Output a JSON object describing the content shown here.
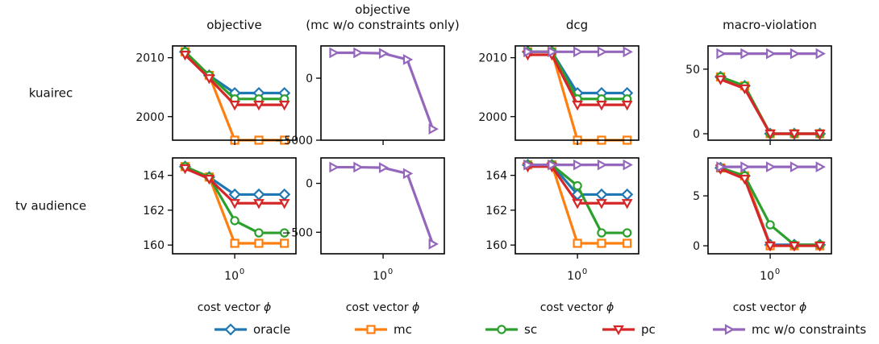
{
  "figure": {
    "row_labels": [
      "kuairec",
      "tv audience"
    ],
    "column_titles": [
      [
        "objective"
      ],
      [
        "objective",
        "(mc w/o constraints only)"
      ],
      [
        "dcg"
      ],
      [
        "macro-violation"
      ]
    ],
    "xlabel_text": "cost vector ",
    "xlabel_symbol": "ϕ",
    "x_tick_base": "10",
    "x_tick_exp": "0"
  },
  "chart_data": [
    {
      "type": "line",
      "row": "kuairec",
      "column": "objective",
      "ylim": [
        1996,
        2012
      ],
      "yticks": [
        {
          "v": 2000,
          "label": "2000"
        },
        {
          "v": 2010,
          "label": "2010"
        }
      ],
      "x": [
        0.5,
        0.7,
        1.0,
        1.4,
        2.0
      ],
      "series": [
        {
          "name": "oracle",
          "values": [
            2011,
            2007,
            2004,
            2004,
            2004
          ]
        },
        {
          "name": "mc",
          "values": [
            2011,
            2007,
            1996,
            1996,
            1996
          ]
        },
        {
          "name": "sc",
          "values": [
            2011,
            2007,
            2003,
            2003,
            2003
          ]
        },
        {
          "name": "pc",
          "values": [
            2010.5,
            2006.5,
            2002,
            2002,
            2002
          ]
        }
      ]
    },
    {
      "type": "line",
      "row": "kuairec",
      "column": "objective (mc w/o constraints only)",
      "ylim": [
        -5000,
        2600
      ],
      "yticks": [
        {
          "v": 0,
          "label": "0"
        },
        {
          "v": -5000,
          "label": "−5000"
        }
      ],
      "x": [
        0.5,
        0.7,
        1.0,
        1.4,
        2.0
      ],
      "series": [
        {
          "name": "mc w/o constraints",
          "values": [
            2050,
            2050,
            2000,
            1500,
            -4100
          ]
        }
      ]
    },
    {
      "type": "line",
      "row": "kuairec",
      "column": "dcg",
      "ylim": [
        1996,
        2012
      ],
      "yticks": [
        {
          "v": 2000,
          "label": "2000"
        },
        {
          "v": 2010,
          "label": "2010"
        }
      ],
      "x": [
        0.5,
        0.7,
        1.0,
        1.4,
        2.0
      ],
      "series": [
        {
          "name": "oracle",
          "values": [
            2011,
            2011,
            2004,
            2004,
            2004
          ]
        },
        {
          "name": "mc",
          "values": [
            2011,
            2011,
            1996,
            1996,
            1996
          ]
        },
        {
          "name": "sc",
          "values": [
            2011,
            2011,
            2003,
            2003,
            2003
          ]
        },
        {
          "name": "pc",
          "values": [
            2010.5,
            2010.5,
            2002,
            2002,
            2002
          ]
        },
        {
          "name": "mc w/o constraints",
          "values": [
            2011,
            2011,
            2011,
            2011,
            2011
          ]
        }
      ]
    },
    {
      "type": "line",
      "row": "kuairec",
      "column": "macro-violation",
      "ylim": [
        -5,
        68
      ],
      "yticks": [
        {
          "v": 0,
          "label": "0"
        },
        {
          "v": 50,
          "label": "50"
        }
      ],
      "x": [
        0.5,
        0.7,
        1.0,
        1.4,
        2.0
      ],
      "series": [
        {
          "name": "oracle",
          "values": [
            44,
            37,
            0,
            0,
            0
          ]
        },
        {
          "name": "mc",
          "values": [
            44,
            37,
            0,
            0,
            0
          ]
        },
        {
          "name": "sc",
          "values": [
            44,
            37,
            0,
            0,
            0
          ]
        },
        {
          "name": "pc",
          "values": [
            42,
            35,
            0,
            0,
            0
          ]
        },
        {
          "name": "mc w/o constraints",
          "values": [
            62,
            62,
            62,
            62,
            62
          ]
        }
      ]
    },
    {
      "type": "line",
      "row": "tv audience",
      "column": "objective",
      "ylim": [
        159.5,
        165.0
      ],
      "yticks": [
        {
          "v": 160,
          "label": "160"
        },
        {
          "v": 162,
          "label": "162"
        },
        {
          "v": 164,
          "label": "164"
        }
      ],
      "x": [
        0.5,
        0.7,
        1.0,
        1.4,
        2.0
      ],
      "series": [
        {
          "name": "oracle",
          "values": [
            164.5,
            163.9,
            162.9,
            162.9,
            162.9
          ]
        },
        {
          "name": "mc",
          "values": [
            164.5,
            163.9,
            160.1,
            160.1,
            160.1
          ]
        },
        {
          "name": "sc",
          "values": [
            164.5,
            163.9,
            161.4,
            160.7,
            160.7
          ]
        },
        {
          "name": "pc",
          "values": [
            164.4,
            163.8,
            162.4,
            162.4,
            162.4
          ]
        }
      ]
    },
    {
      "type": "line",
      "row": "tv audience",
      "column": "objective (mc w/o constraints only)",
      "ylim": [
        -720,
        260
      ],
      "yticks": [
        {
          "v": 0,
          "label": "0"
        },
        {
          "v": -500,
          "label": "−500"
        }
      ],
      "x": [
        0.5,
        0.7,
        1.0,
        1.4,
        2.0
      ],
      "series": [
        {
          "name": "mc w/o constraints",
          "values": [
            165,
            165,
            160,
            100,
            -620
          ]
        }
      ]
    },
    {
      "type": "line",
      "row": "tv audience",
      "column": "dcg",
      "ylim": [
        159.5,
        165.0
      ],
      "yticks": [
        {
          "v": 160,
          "label": "160"
        },
        {
          "v": 162,
          "label": "162"
        },
        {
          "v": 164,
          "label": "164"
        }
      ],
      "x": [
        0.5,
        0.7,
        1.0,
        1.4,
        2.0
      ],
      "series": [
        {
          "name": "oracle",
          "values": [
            164.6,
            164.6,
            162.9,
            162.9,
            162.9
          ]
        },
        {
          "name": "mc",
          "values": [
            164.6,
            164.6,
            160.1,
            160.1,
            160.1
          ]
        },
        {
          "name": "sc",
          "values": [
            164.6,
            164.6,
            163.4,
            160.7,
            160.7
          ]
        },
        {
          "name": "pc",
          "values": [
            164.5,
            164.5,
            162.4,
            162.4,
            162.4
          ]
        },
        {
          "name": "mc w/o constraints",
          "values": [
            164.6,
            164.6,
            164.6,
            164.6,
            164.6
          ]
        }
      ]
    },
    {
      "type": "line",
      "row": "tv audience",
      "column": "macro-violation",
      "ylim": [
        -0.8,
        8.8
      ],
      "yticks": [
        {
          "v": 0,
          "label": "0"
        },
        {
          "v": 5,
          "label": "5"
        }
      ],
      "x": [
        0.5,
        0.7,
        1.0,
        1.4,
        2.0
      ],
      "series": [
        {
          "name": "oracle",
          "values": [
            7.8,
            7.0,
            0.1,
            0.1,
            0.1
          ]
        },
        {
          "name": "mc",
          "values": [
            7.8,
            7.0,
            0.0,
            0.0,
            0.0
          ]
        },
        {
          "name": "sc",
          "values": [
            7.8,
            7.0,
            2.1,
            0.1,
            0.1
          ]
        },
        {
          "name": "pc",
          "values": [
            7.7,
            6.7,
            0.0,
            0.0,
            0.0
          ]
        },
        {
          "name": "mc w/o constraints",
          "values": [
            7.9,
            7.9,
            7.9,
            7.9,
            7.9
          ]
        }
      ],
      "x_scale": "log"
    }
  ],
  "legend": {
    "placement": "bottom-center",
    "items": [
      {
        "name": "oracle",
        "color": "#1f77b4",
        "marker": "diamond"
      },
      {
        "name": "mc",
        "color": "#ff7f0e",
        "marker": "square"
      },
      {
        "name": "sc",
        "color": "#2ca02c",
        "marker": "circle"
      },
      {
        "name": "pc",
        "color": "#d62728",
        "marker": "triangle-down"
      },
      {
        "name": "mc w/o constraints",
        "color": "#9467bd",
        "marker": "triangle-right"
      }
    ]
  }
}
